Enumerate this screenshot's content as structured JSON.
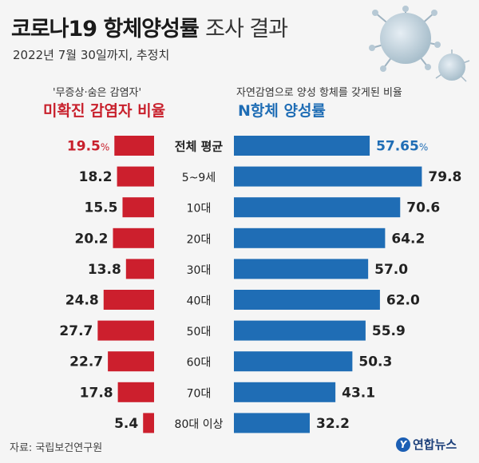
{
  "header": {
    "title_bold": "코로나19 항체양성률",
    "title_light": "조사 결과",
    "subtitle": "2022년 7월 30일까지, 추정치"
  },
  "left_panel": {
    "note": "'무증상·숨은 감염자'",
    "heading": "미확진 감염자 비율"
  },
  "right_panel": {
    "note": "자연감염으로 양성 항체를 갖게된 비율",
    "heading": "N항체 양성률"
  },
  "footer": {
    "source": "자료: 국립보건연구원",
    "brand": "연합뉴스",
    "brand_logo": "Y"
  },
  "colors": {
    "left_bar": "#cc1f2d",
    "right_bar": "#1f6db5",
    "left_highlight_text": "#c8202c",
    "right_highlight_text": "#1f6db5"
  },
  "chart_data": {
    "type": "bar",
    "layout": "butterfly",
    "categories": [
      "전체 평균",
      "5~9세",
      "10대",
      "20대",
      "30대",
      "40대",
      "50대",
      "60대",
      "70대",
      "80대 이상"
    ],
    "series": [
      {
        "name": "미확진 감염자 비율",
        "unit": "%",
        "values": [
          19.5,
          18.2,
          15.5,
          20.2,
          13.8,
          24.8,
          27.7,
          22.7,
          17.8,
          5.4
        ],
        "labels": [
          "19.5",
          "18.2",
          "15.5",
          "20.2",
          "13.8",
          "24.8",
          "27.7",
          "22.7",
          "17.8",
          "5.4"
        ]
      },
      {
        "name": "N항체 양성률",
        "unit": "%",
        "values": [
          57.65,
          79.8,
          70.6,
          64.2,
          57.0,
          62.0,
          55.9,
          50.3,
          43.1,
          32.2
        ],
        "labels": [
          "57.65",
          "79.8",
          "70.6",
          "64.2",
          "57.0",
          "62.0",
          "55.9",
          "50.3",
          "43.1",
          "32.2"
        ]
      }
    ],
    "highlight_index": 0,
    "highlight_suffix": "%"
  }
}
